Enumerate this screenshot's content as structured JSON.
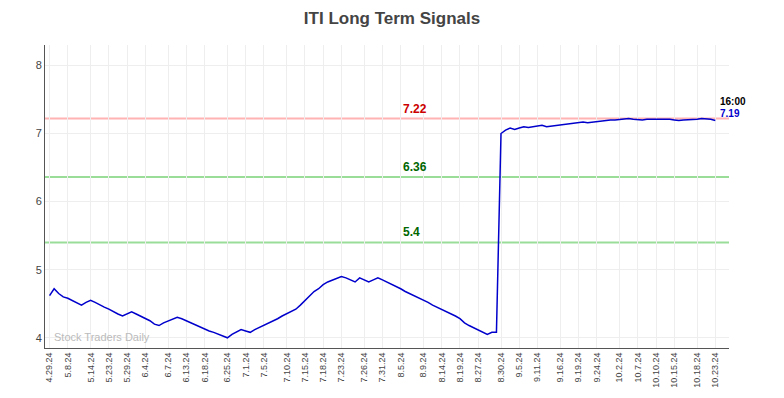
{
  "chart_data": {
    "type": "line",
    "title": "ITI Long Term Signals",
    "categories": [
      "4.29.24",
      null,
      null,
      null,
      "5.8.24",
      null,
      null,
      null,
      null,
      "5.14.24",
      null,
      null,
      null,
      "5.23.24",
      null,
      null,
      null,
      "5.29.24",
      null,
      null,
      null,
      "6.4.24",
      null,
      null,
      null,
      null,
      "6.7.24",
      null,
      null,
      null,
      "6.13.24",
      null,
      null,
      null,
      "6.18.24",
      null,
      null,
      null,
      null,
      "6.25.24",
      null,
      null,
      null,
      "7.1.24",
      null,
      null,
      null,
      "7.5.24",
      null,
      null,
      null,
      null,
      "7.10.24",
      null,
      null,
      null,
      "7.15.24",
      null,
      null,
      null,
      "7.18.24",
      null,
      null,
      null,
      "7.23.24",
      null,
      null,
      null,
      null,
      "7.26.24",
      null,
      null,
      null,
      "7.31.24",
      null,
      null,
      null,
      "8.5.24",
      null,
      null,
      null,
      null,
      "8.9.24",
      null,
      null,
      null,
      "8.14.24",
      null,
      null,
      null,
      "8.19.24",
      null,
      null,
      null,
      "8.27.24",
      null,
      null,
      null,
      null,
      "8.30.24",
      null,
      null,
      null,
      "9.5.24",
      null,
      null,
      null,
      "9.11.24",
      null,
      null,
      null,
      null,
      "9.16.24",
      null,
      null,
      null,
      "9.19.24",
      null,
      null,
      null,
      "9.24.24",
      null,
      null,
      null,
      null,
      "10.2.24",
      null,
      null,
      null,
      "10.7.24",
      null,
      null,
      null,
      "10.10.24",
      null,
      null,
      null,
      "10.15.24",
      null,
      null,
      null,
      null,
      "10.18.24",
      null,
      null,
      null,
      "10.23.24"
    ],
    "values": [
      4.62,
      4.72,
      4.65,
      4.6,
      4.58,
      4.55,
      4.52,
      4.48,
      4.52,
      4.55,
      4.52,
      4.48,
      4.45,
      4.42,
      4.38,
      4.35,
      4.32,
      4.35,
      4.38,
      4.35,
      4.32,
      4.28,
      4.25,
      4.2,
      4.18,
      4.22,
      4.25,
      4.28,
      4.3,
      4.28,
      4.25,
      4.22,
      4.18,
      4.15,
      4.12,
      4.1,
      4.08,
      4.05,
      4.02,
      4.0,
      4.05,
      4.08,
      4.12,
      4.1,
      4.08,
      4.12,
      4.15,
      4.18,
      4.22,
      4.25,
      4.28,
      4.32,
      4.35,
      4.38,
      4.42,
      4.48,
      4.55,
      4.62,
      4.68,
      4.72,
      4.78,
      4.82,
      4.85,
      4.88,
      4.9,
      4.88,
      4.85,
      4.82,
      4.88,
      4.85,
      4.82,
      4.85,
      4.88,
      4.85,
      4.82,
      4.78,
      4.75,
      4.72,
      4.68,
      4.65,
      4.62,
      4.58,
      4.55,
      4.52,
      4.48,
      4.45,
      4.42,
      4.38,
      4.35,
      4.32,
      4.28,
      4.22,
      4.18,
      4.15,
      4.12,
      4.08,
      4.05,
      4.08,
      4.08,
      7.0,
      7.05,
      7.08,
      7.06,
      7.08,
      7.1,
      7.09,
      7.1,
      7.11,
      7.12,
      7.1,
      7.11,
      7.12,
      7.13,
      7.14,
      7.15,
      7.16,
      7.17,
      7.17,
      7.16,
      7.17,
      7.18,
      7.18,
      7.19,
      7.2,
      7.2,
      7.21,
      7.21,
      7.22,
      7.21,
      7.2,
      7.2,
      7.21,
      7.21,
      7.22,
      7.22,
      7.22,
      7.21,
      7.2,
      7.19,
      7.2,
      7.2,
      7.21,
      7.21,
      7.22,
      7.22,
      7.21,
      7.19
    ],
    "color": "#0000cc",
    "ylim": [
      3.85,
      8.3
    ],
    "yticks": [
      4,
      5,
      6,
      7,
      8
    ],
    "grid": true,
    "reference_lines": [
      {
        "value": 7.22,
        "color": "#ffb3b3",
        "label": "7.22",
        "label_color": "#cc0000",
        "x": "8.5.24"
      },
      {
        "value": 6.36,
        "color": "#99dd99",
        "label": "6.36",
        "label_color": "#006600",
        "x": "8.5.24"
      },
      {
        "value": 5.4,
        "color": "#99dd99",
        "label": "5.4",
        "label_color": "#006600",
        "x": "8.5.24"
      }
    ],
    "annotations": [
      {
        "text": "16:00",
        "x": "10.23.24",
        "y": 7.19,
        "color": "#000000"
      },
      {
        "text": "7.19",
        "x": "10.23.24",
        "y": 7.19,
        "color": "#0000cc"
      }
    ],
    "watermark": {
      "text": "Stock Traders Daily",
      "color": "#bbbbbb"
    }
  }
}
